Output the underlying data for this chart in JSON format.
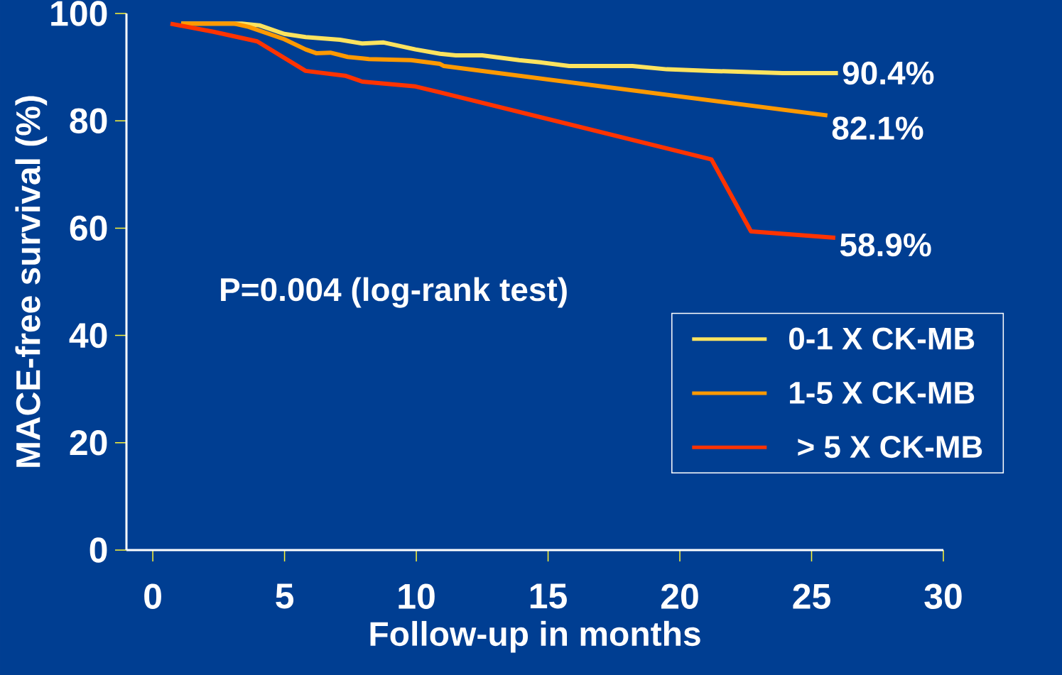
{
  "chart_data": {
    "type": "line",
    "xlabel": "Follow-up in months",
    "ylabel": "MACE-free survival (%)",
    "xlim": [
      -1,
      30
    ],
    "xticks": [
      0,
      5,
      10,
      15,
      20,
      25,
      30
    ],
    "ylim": [
      0,
      100
    ],
    "yticks": [
      0,
      20,
      40,
      60,
      80,
      100
    ],
    "legend": "right",
    "marker": "none",
    "line_style": "solid",
    "annotations": [
      "P=0.004 (log-rank test)",
      "90.4%",
      "82.1%",
      "58.9%"
    ],
    "series": [
      {
        "name": "0-1 X CK-MB",
        "color": "#fde35f",
        "x": [
          1.08,
          3.37,
          4.04,
          4.99,
          5.8,
          7.1,
          7.95,
          8.76,
          9.97,
          10.9,
          11.5,
          12.5,
          13.9,
          14.7,
          15.8,
          18.2,
          19.5,
          21.2,
          23.9,
          26
        ],
        "values": [
          98.1,
          98.1,
          97.8,
          96.2,
          95.6,
          95.1,
          94.4,
          94.6,
          93.3,
          92.5,
          92.2,
          92.2,
          91.3,
          90.9,
          90.2,
          90.2,
          89.6,
          89.3,
          88.9,
          88.9
        ]
      },
      {
        "name": "1-5 X CK-MB",
        "color": "#ff9900",
        "x": [
          1.08,
          3.1,
          3.64,
          4.99,
          5.8,
          6.2,
          6.74,
          7.4,
          8.2,
          9.8,
          10.9,
          11.05,
          25.6
        ],
        "values": [
          98.1,
          98.1,
          97.5,
          95.2,
          93.3,
          92.6,
          92.7,
          91.9,
          91.5,
          91.3,
          90.6,
          90.2,
          81.0
        ]
      },
      {
        "name": " > 5 X CK-MB",
        "color": "#ff3300",
        "x": [
          0.67,
          2.3,
          3.96,
          5.8,
          7.3,
          7.95,
          9.97,
          10.9,
          21.2,
          22.7,
          25.9
        ],
        "values": [
          98.1,
          96.6,
          94.8,
          89.3,
          88.4,
          87.3,
          86.4,
          85.3,
          72.8,
          59.4,
          58.2
        ]
      }
    ]
  }
}
